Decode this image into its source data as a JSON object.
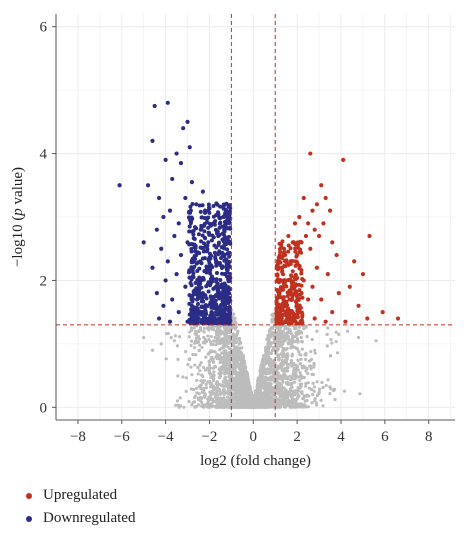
{
  "chart_data": {
    "type": "scatter",
    "title": "",
    "xlabel": "log2 (fold change)",
    "ylabel_parts": [
      "−log10 (",
      "p",
      " value)"
    ],
    "xlim": [
      -9,
      9.2
    ],
    "ylim": [
      -0.2,
      6.2
    ],
    "xticks": [
      -8,
      -6,
      -4,
      -2,
      0,
      2,
      4,
      6,
      8
    ],
    "yticks": [
      0,
      2,
      4,
      6
    ],
    "grid": true,
    "thresholds": {
      "log2fc": [
        -1,
        1
      ],
      "neg_log10_p": 1.3
    },
    "colors": {
      "up": "#c0321f",
      "down": "#2b2c86",
      "ns": "#bcbcbc",
      "threshold": "#c0321f",
      "grid": "#ececec",
      "axis": "#555555"
    },
    "series": [
      {
        "name": "Upregulated",
        "color": "#c0321f",
        "points": [
          [
            2.6,
            4.0
          ],
          [
            4.1,
            3.9
          ],
          [
            3.1,
            3.5
          ],
          [
            3.3,
            3.3
          ],
          [
            2.9,
            3.2
          ],
          [
            2.7,
            3.1
          ],
          [
            2.3,
            3.3
          ],
          [
            3.5,
            3.1
          ],
          [
            2.1,
            3.0
          ],
          [
            3.2,
            2.9
          ],
          [
            2.5,
            2.9
          ],
          [
            1.9,
            2.9
          ],
          [
            2.8,
            2.8
          ],
          [
            2.4,
            2.7
          ],
          [
            3.0,
            2.7
          ],
          [
            5.3,
            2.7
          ],
          [
            1.6,
            2.7
          ],
          [
            1.8,
            2.6
          ],
          [
            2.2,
            2.6
          ],
          [
            3.6,
            2.6
          ],
          [
            2.6,
            2.5
          ],
          [
            1.4,
            2.5
          ],
          [
            3.8,
            2.4
          ],
          [
            2.0,
            2.4
          ],
          [
            1.7,
            2.3
          ],
          [
            4.6,
            2.3
          ],
          [
            2.9,
            2.2
          ],
          [
            1.3,
            2.2
          ],
          [
            3.4,
            2.1
          ],
          [
            5.0,
            2.1
          ],
          [
            2.3,
            2.0
          ],
          [
            1.5,
            2.0
          ],
          [
            4.4,
            1.9
          ],
          [
            2.7,
            1.9
          ],
          [
            1.2,
            1.8
          ],
          [
            3.9,
            1.8
          ],
          [
            1.9,
            1.8
          ],
          [
            3.1,
            1.7
          ],
          [
            2.5,
            1.7
          ],
          [
            1.4,
            1.6
          ],
          [
            4.8,
            1.6
          ],
          [
            2.1,
            1.6
          ],
          [
            5.9,
            1.5
          ],
          [
            3.6,
            1.5
          ],
          [
            1.7,
            1.5
          ],
          [
            2.8,
            1.4
          ],
          [
            6.6,
            1.4
          ],
          [
            1.3,
            1.4
          ],
          [
            5.2,
            1.4
          ],
          [
            4.2,
            1.35
          ],
          [
            2.2,
            1.35
          ],
          [
            1.1,
            1.35
          ],
          [
            3.3,
            1.35
          ]
        ]
      },
      {
        "name": "Downregulated",
        "color": "#2b2c86",
        "points": [
          [
            -3.9,
            4.8
          ],
          [
            -4.5,
            4.75
          ],
          [
            -3.0,
            4.5
          ],
          [
            -3.2,
            4.4
          ],
          [
            -4.6,
            4.2
          ],
          [
            -2.9,
            4.1
          ],
          [
            -3.5,
            4.0
          ],
          [
            -4.0,
            3.9
          ],
          [
            -3.3,
            3.85
          ],
          [
            -6.1,
            3.5
          ],
          [
            -4.8,
            3.5
          ],
          [
            -3.7,
            3.6
          ],
          [
            -2.8,
            3.55
          ],
          [
            -2.3,
            3.4
          ],
          [
            -4.3,
            3.3
          ],
          [
            -3.1,
            3.3
          ],
          [
            -2.6,
            3.2
          ],
          [
            -3.8,
            3.1
          ],
          [
            -2.2,
            3.1
          ],
          [
            -4.1,
            3.0
          ],
          [
            -3.4,
            2.9
          ],
          [
            -1.8,
            2.9
          ],
          [
            -2.9,
            2.85
          ],
          [
            -4.4,
            2.8
          ],
          [
            -2.4,
            2.8
          ],
          [
            -3.6,
            2.7
          ],
          [
            -1.6,
            2.7
          ],
          [
            -5.0,
            2.6
          ],
          [
            -3.0,
            2.6
          ],
          [
            -2.1,
            2.5
          ],
          [
            -4.2,
            2.5
          ],
          [
            -3.3,
            2.4
          ],
          [
            -1.4,
            2.4
          ],
          [
            -2.7,
            2.3
          ],
          [
            -3.9,
            2.3
          ],
          [
            -4.6,
            2.2
          ],
          [
            -2.0,
            2.2
          ],
          [
            -3.5,
            2.1
          ],
          [
            -1.3,
            2.1
          ],
          [
            -2.5,
            2.0
          ],
          [
            -4.0,
            2.0
          ],
          [
            -3.1,
            1.9
          ],
          [
            -1.7,
            1.9
          ],
          [
            -4.4,
            1.8
          ],
          [
            -2.3,
            1.8
          ],
          [
            -3.7,
            1.7
          ],
          [
            -1.2,
            1.7
          ],
          [
            -2.8,
            1.6
          ],
          [
            -4.1,
            1.6
          ],
          [
            -1.9,
            1.5
          ],
          [
            -3.4,
            1.5
          ],
          [
            -2.6,
            1.45
          ],
          [
            -4.3,
            1.4
          ],
          [
            -1.5,
            1.4
          ],
          [
            -3.0,
            1.35
          ],
          [
            -2.1,
            1.35
          ],
          [
            -1.1,
            1.35
          ],
          [
            -3.8,
            1.35
          ]
        ]
      }
    ]
  },
  "legend": {
    "up_label": "Upregulated",
    "down_label": "Downregulated"
  }
}
